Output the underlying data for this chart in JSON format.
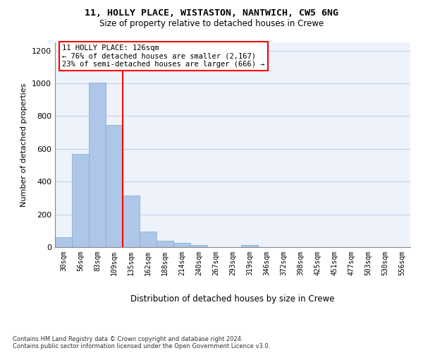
{
  "title1": "11, HOLLY PLACE, WISTASTON, NANTWICH, CW5 6NG",
  "title2": "Size of property relative to detached houses in Crewe",
  "xlabel": "Distribution of detached houses by size in Crewe",
  "ylabel": "Number of detached properties",
  "bar_color": "#aec6e8",
  "bar_edge_color": "#7aadd0",
  "categories": [
    "30sqm",
    "56sqm",
    "83sqm",
    "109sqm",
    "135sqm",
    "162sqm",
    "188sqm",
    "214sqm",
    "240sqm",
    "267sqm",
    "293sqm",
    "319sqm",
    "346sqm",
    "372sqm",
    "398sqm",
    "425sqm",
    "451sqm",
    "477sqm",
    "503sqm",
    "530sqm",
    "556sqm"
  ],
  "values": [
    62,
    570,
    1005,
    745,
    315,
    95,
    38,
    25,
    14,
    0,
    0,
    14,
    0,
    0,
    0,
    0,
    0,
    0,
    0,
    0,
    0
  ],
  "annotation_box_text": "11 HOLLY PLACE: 126sqm\n← 76% of detached houses are smaller (2,167)\n23% of semi-detached houses are larger (666) →",
  "box_color": "white",
  "box_edge_color": "red",
  "ylim": [
    0,
    1250
  ],
  "yticks": [
    0,
    200,
    400,
    600,
    800,
    1000,
    1200
  ],
  "footnote": "Contains HM Land Registry data © Crown copyright and database right 2024.\nContains public sector information licensed under the Open Government Licence v3.0.",
  "background_color": "#eef2fb",
  "grid_color": "#c8cfe8"
}
